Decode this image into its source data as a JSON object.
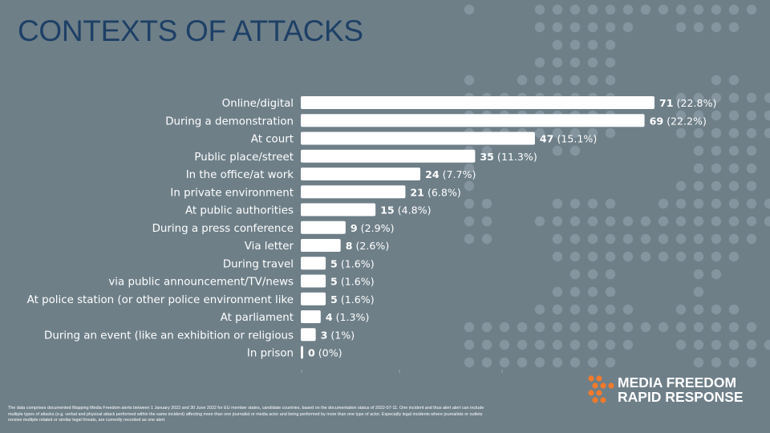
{
  "title": "CONTEXTS OF ATTACKS",
  "chart_data": {
    "type": "bar",
    "orientation": "horizontal",
    "categories": [
      "Online/digital",
      "During a demonstration",
      "At court",
      "Public place/street",
      "In the office/at work",
      "In private environment",
      "At public authorities",
      "During a press conference",
      "Via letter",
      "During travel",
      "via public announcement/TV/news",
      "At police station (or other police environment like",
      "At parliament",
      "During an event (like an exhibition or religious",
      "In prison"
    ],
    "values": [
      71,
      69,
      47,
      35,
      24,
      21,
      15,
      9,
      8,
      5,
      5,
      5,
      4,
      3,
      0
    ],
    "percent_labels": [
      "(22.8%)",
      "(22.2%)",
      "(15.1%)",
      "(11.3%)",
      "(7.7%)",
      "(6.8%)",
      "(4.8%)",
      "(2.9%)",
      "(2.6%)",
      "(1.6%)",
      "(1.6%)",
      "(1.6%)",
      "(1.3%)",
      "(1%)",
      "(0%)"
    ],
    "bar_color": "#ffffff",
    "grid": false
  },
  "footnote": "The data comprises documented Mapping Media Freedom alerts between 1 January 2022 and 30 June 2022 for EU member states, candidate countries, based on the documentation status of 2022-07-11. One incident and thus alert alert can include multiple types of attacks (e.g. verbal and physical attack performed within the same incident) affecting more than one journalist or media actor and being performed by more than one type of actor. Especially legal incidents where journalists or outlets receive multiple related or similar legal threats, are currently recorded as one alert.",
  "logo": {
    "line1": "MEDIA FREEDOM",
    "line2": "RAPID RESPONSE",
    "accent": "#f07a2c"
  },
  "colors": {
    "background": "#6e7f88",
    "title": "#1e4066",
    "text": "#ffffff"
  }
}
